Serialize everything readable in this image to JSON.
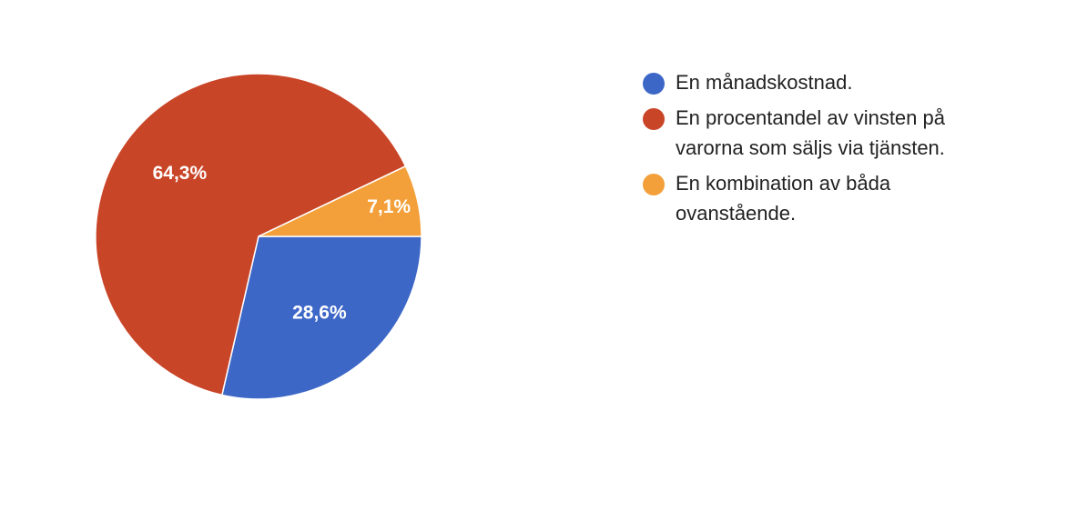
{
  "chart_data": {
    "type": "pie",
    "title": "",
    "legend_position": "right",
    "slices": [
      {
        "label": "En månadskostnad.",
        "value": 28.6,
        "value_label": "28,6%",
        "color": "#3d67c7"
      },
      {
        "label": "En procentandel av vinsten på varorna som säljs via tjänsten.",
        "value": 64.3,
        "value_label": "64,3%",
        "color": "#c94527"
      },
      {
        "label": "En kombination av båda ovanstående.",
        "value": 7.1,
        "value_label": "7,1%",
        "color": "#f3a03a"
      }
    ]
  }
}
